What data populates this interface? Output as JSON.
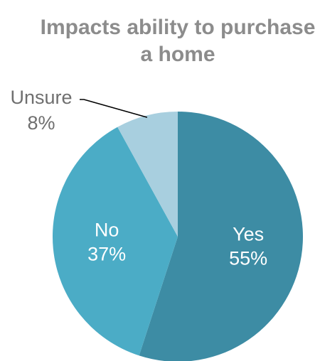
{
  "chart_data": {
    "type": "pie",
    "title": "Impacts ability to purchase a home",
    "title_lines": [
      "Impacts ability to purchase",
      "a home"
    ],
    "slices": [
      {
        "name": "Yes",
        "value": 55,
        "value_label": "55%",
        "color": "#3d8ca4"
      },
      {
        "name": "No",
        "value": 37,
        "value_label": "37%",
        "color": "#4bacc6"
      },
      {
        "name": "Unsure",
        "value": 8,
        "value_label": "8%",
        "color": "#a8cfdf"
      }
    ],
    "start_position": "top",
    "direction": "clockwise",
    "legend": "none"
  }
}
